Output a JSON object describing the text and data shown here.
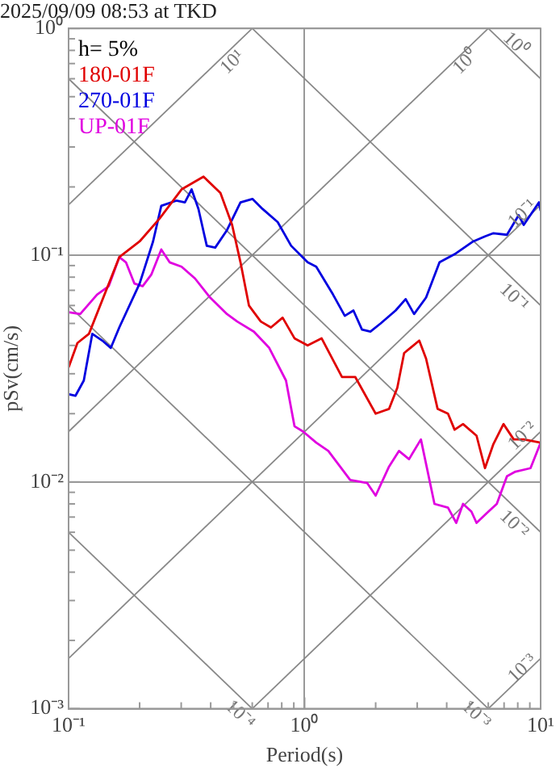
{
  "chart_data": {
    "type": "line",
    "title": "2025/09/09 08:53 at TKD",
    "xlabel": "Period(s)",
    "ylabel": "pSv(cm/s)",
    "legend_title": "h= 5%",
    "legend": "top left",
    "log": "xy",
    "grid": true,
    "marker": "none",
    "line_style": "solid",
    "xlim": [
      0.1,
      10
    ],
    "ylim": [
      0.001,
      1
    ],
    "xticks": [
      {
        "value": 0.1,
        "label": "10⁻¹"
      },
      {
        "value": 0.2,
        "label": null
      },
      {
        "value": 0.3,
        "label": null
      },
      {
        "value": 0.4,
        "label": null
      },
      {
        "value": 0.5,
        "label": null
      },
      {
        "value": 0.6,
        "label": null
      },
      {
        "value": 0.7,
        "label": null
      },
      {
        "value": 0.8,
        "label": null
      },
      {
        "value": 0.9,
        "label": null
      },
      {
        "value": 1,
        "label": "10⁰"
      },
      {
        "value": 2,
        "label": null
      },
      {
        "value": 3,
        "label": null
      },
      {
        "value": 4,
        "label": null
      },
      {
        "value": 5,
        "label": null
      },
      {
        "value": 6,
        "label": null
      },
      {
        "value": 7,
        "label": null
      },
      {
        "value": 8,
        "label": null
      },
      {
        "value": 9,
        "label": null
      },
      {
        "value": 10,
        "label": "10¹"
      }
    ],
    "yticks": [
      {
        "value": 0.001,
        "label": "10⁻³"
      },
      {
        "value": 0.002,
        "label": null
      },
      {
        "value": 0.003,
        "label": null
      },
      {
        "value": 0.004,
        "label": null
      },
      {
        "value": 0.005,
        "label": null
      },
      {
        "value": 0.006,
        "label": null
      },
      {
        "value": 0.007,
        "label": null
      },
      {
        "value": 0.008,
        "label": null
      },
      {
        "value": 0.009,
        "label": null
      },
      {
        "value": 0.01,
        "label": "10⁻²"
      },
      {
        "value": 0.02,
        "label": null
      },
      {
        "value": 0.03,
        "label": null
      },
      {
        "value": 0.04,
        "label": null
      },
      {
        "value": 0.05,
        "label": null
      },
      {
        "value": 0.06,
        "label": null
      },
      {
        "value": 0.07,
        "label": null
      },
      {
        "value": 0.08,
        "label": null
      },
      {
        "value": 0.09,
        "label": null
      },
      {
        "value": 0.1,
        "label": "10⁻¹"
      },
      {
        "value": 0.2,
        "label": null
      },
      {
        "value": 0.3,
        "label": null
      },
      {
        "value": 0.4,
        "label": null
      },
      {
        "value": 0.5,
        "label": null
      },
      {
        "value": 0.6,
        "label": null
      },
      {
        "value": 0.7,
        "label": null
      },
      {
        "value": 0.8,
        "label": null
      },
      {
        "value": 0.9,
        "label": null
      },
      {
        "value": 1,
        "label": "10⁰"
      }
    ],
    "series": [
      {
        "color": "#888888",
        "x": [
          0.1,
          0.6
        ],
        "values": [
          0.1667,
          1
        ]
      },
      {
        "color": "#888888",
        "x": [
          0.1,
          6
        ],
        "values": [
          0.01667,
          1
        ]
      },
      {
        "color": "#888888",
        "x": [
          0.1,
          10
        ],
        "values": [
          0.001667,
          0.1667
        ]
      },
      {
        "color": "#888888",
        "x": [
          0.6,
          10
        ],
        "values": [
          0.001,
          0.01667
        ]
      },
      {
        "color": "#888888",
        "x": [
          6,
          10
        ],
        "values": [
          0.001,
          0.001667
        ]
      },
      {
        "color": "#888888",
        "x": [
          6,
          10
        ],
        "values": [
          1,
          0.6
        ]
      },
      {
        "color": "#888888",
        "x": [
          0.6,
          10
        ],
        "values": [
          1,
          0.06
        ]
      },
      {
        "color": "#888888",
        "x": [
          0.1,
          10
        ],
        "values": [
          0.6,
          0.006
        ]
      },
      {
        "color": "#888888",
        "x": [
          0.1,
          6
        ],
        "values": [
          0.06,
          0.001
        ]
      },
      {
        "color": "#888888",
        "x": [
          0.1,
          0.6
        ],
        "values": [
          0.006,
          0.001
        ]
      },
      {
        "name": "180-01F",
        "color": "#e00000",
        "x": [
          0.1,
          0.109,
          0.122,
          0.164,
          0.2,
          0.243,
          0.301,
          0.373,
          0.44,
          0.493,
          0.535,
          0.581,
          0.652,
          0.72,
          0.807,
          0.906,
          1.03,
          1.18,
          1.44,
          1.64,
          2.0,
          2.28,
          2.47,
          2.64,
          3.06,
          3.27,
          3.66,
          4.05,
          4.32,
          4.69,
          5.35,
          5.81,
          6.31,
          6.96,
          7.69,
          8.48,
          10
        ],
        "values": [
          0.032,
          0.041,
          0.045,
          0.098,
          0.115,
          0.145,
          0.195,
          0.222,
          0.188,
          0.136,
          0.093,
          0.06,
          0.051,
          0.048,
          0.053,
          0.043,
          0.04,
          0.043,
          0.029,
          0.029,
          0.02,
          0.021,
          0.026,
          0.037,
          0.042,
          0.035,
          0.021,
          0.02,
          0.017,
          0.018,
          0.016,
          0.0115,
          0.0147,
          0.018,
          0.0154,
          0.0154,
          0.0149
        ]
      },
      {
        "name": "270-01F",
        "color": "#0000e0",
        "x": [
          0.1,
          0.107,
          0.116,
          0.126,
          0.139,
          0.151,
          0.164,
          0.2,
          0.228,
          0.247,
          0.286,
          0.311,
          0.332,
          0.355,
          0.385,
          0.418,
          0.469,
          0.535,
          0.601,
          0.663,
          0.769,
          0.877,
          1.03,
          1.12,
          1.32,
          1.48,
          1.61,
          1.75,
          1.9,
          2.1,
          2.43,
          2.68,
          2.91,
          3.27,
          3.73,
          4.32,
          5.18,
          5.81,
          6.31,
          7.2,
          8.07,
          8.48,
          9.84,
          10
        ],
        "values": [
          0.0244,
          0.024,
          0.028,
          0.045,
          0.042,
          0.039,
          0.048,
          0.075,
          0.115,
          0.165,
          0.174,
          0.171,
          0.195,
          0.16,
          0.11,
          0.108,
          0.129,
          0.171,
          0.177,
          0.16,
          0.14,
          0.11,
          0.093,
          0.089,
          0.067,
          0.054,
          0.057,
          0.047,
          0.046,
          0.05,
          0.057,
          0.064,
          0.055,
          0.065,
          0.093,
          0.101,
          0.115,
          0.121,
          0.125,
          0.123,
          0.15,
          0.136,
          0.171,
          0.157
        ]
      },
      {
        "name": "UP-01F",
        "color": "#e000e0",
        "x": [
          0.1,
          0.112,
          0.132,
          0.148,
          0.164,
          0.175,
          0.19,
          0.206,
          0.224,
          0.247,
          0.268,
          0.301,
          0.343,
          0.398,
          0.469,
          0.518,
          0.61,
          0.708,
          0.834,
          0.906,
          0.984,
          1.12,
          1.26,
          1.56,
          1.84,
          2.0,
          2.28,
          2.51,
          2.77,
          3.11,
          3.55,
          4.05,
          4.39,
          4.69,
          5.09,
          5.35,
          6.01,
          6.52,
          7.2,
          7.82,
          9.06,
          10
        ],
        "values": [
          0.056,
          0.055,
          0.067,
          0.073,
          0.098,
          0.093,
          0.075,
          0.073,
          0.082,
          0.106,
          0.093,
          0.089,
          0.079,
          0.065,
          0.055,
          0.051,
          0.046,
          0.039,
          0.028,
          0.0176,
          0.0167,
          0.0149,
          0.0137,
          0.0102,
          0.0099,
          0.0087,
          0.0117,
          0.0137,
          0.0126,
          0.0154,
          0.008,
          0.0077,
          0.0066,
          0.008,
          0.0074,
          0.0066,
          0.0074,
          0.008,
          0.0106,
          0.0111,
          0.0115,
          0.0149
        ]
      }
    ],
    "annotations": [
      {
        "text": "10¹",
        "x": 0.454,
        "y": 0.78
      },
      {
        "text": "10⁰",
        "x": 4.4,
        "y": 0.78
      },
      {
        "text": "10⁰",
        "x": 7.8,
        "y": 0.85
      },
      {
        "text": "10⁻¹",
        "x": 8.4,
        "y": 0.152
      },
      {
        "text": "10⁻¹",
        "x": 8.4,
        "y": 0.0714
      },
      {
        "text": "10⁻²",
        "x": 8.4,
        "y": 0.0159
      },
      {
        "text": "10⁻²",
        "x": 8.4,
        "y": 0.00714
      },
      {
        "text": "10⁻⁴",
        "x": 0.58,
        "y": 0.001034
      },
      {
        "text": "10⁻³",
        "x": 5.8,
        "y": 0.001034
      },
      {
        "text": "10⁻³",
        "x": 8.4,
        "y": 0.0015
      }
    ]
  }
}
